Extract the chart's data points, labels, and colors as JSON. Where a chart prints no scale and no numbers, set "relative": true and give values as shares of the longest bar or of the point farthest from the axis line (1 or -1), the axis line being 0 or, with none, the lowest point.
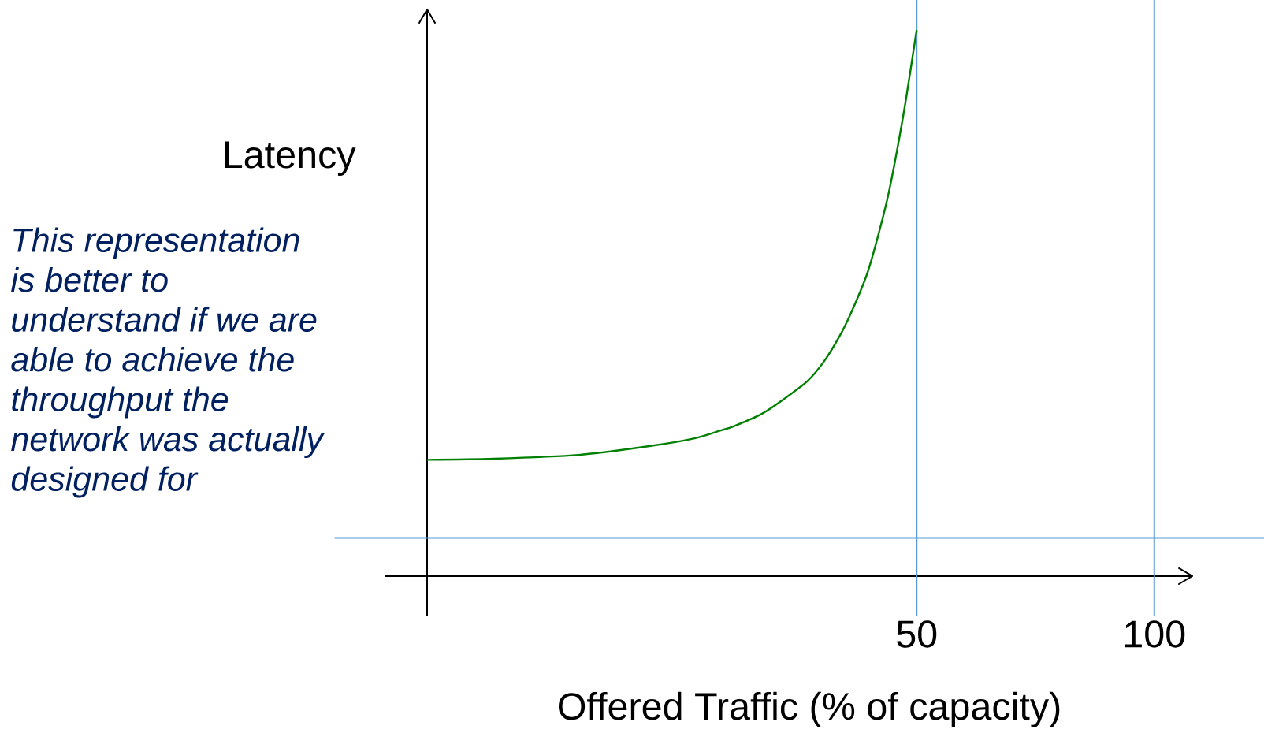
{
  "chart_data": {
    "type": "line",
    "xlabel": "Offered Traffic (% of capacity)",
    "ylabel": "Latency",
    "relative": true,
    "x": [
      -53,
      -38.9,
      -21.1,
      -6.3,
      3.1,
      8.5,
      11.4,
      17.4,
      22.2,
      27.0,
      30.5,
      33.7,
      36.2,
      39.4,
      41.3,
      43.9,
      45.8,
      47.7,
      50
    ],
    "series": [
      {
        "color": "#008000",
        "values": [
          0.213,
          0.215,
          0.222,
          0.238,
          0.252,
          0.266,
          0.274,
          0.297,
          0.325,
          0.357,
          0.393,
          0.438,
          0.482,
          0.549,
          0.604,
          0.693,
          0.776,
          0.87,
          1.0
        ]
      }
    ],
    "xlim": [
      -53,
      108
    ],
    "xticks": [
      50,
      100
    ],
    "ref_lines": [
      {
        "axis": "x",
        "value": 50,
        "color": "#5b9bd5"
      },
      {
        "axis": "x",
        "value": 100,
        "color": "#5b9bd5"
      },
      {
        "axis": "y",
        "value": 0.07,
        "color": "#5b9bd5"
      }
    ],
    "annotations": [
      "This representation is better to understand if we are able to achieve the throughput the network was actually designed for"
    ],
    "marker": "none",
    "line_style": "solid"
  }
}
